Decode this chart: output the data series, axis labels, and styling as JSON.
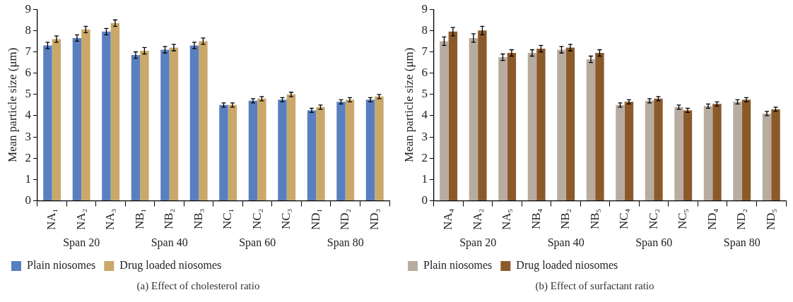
{
  "chart_data": [
    {
      "type": "bar",
      "title": "(a)  Effect of cholesterol ratio",
      "ylabel": "Mean particle size (μm)",
      "categories": [
        "NA₁",
        "NA₂",
        "NA₃",
        "NB₁",
        "NB₂",
        "NB₃",
        "NC₁",
        "NC₂",
        "NC₃",
        "ND₁",
        "ND₂",
        "ND₃"
      ],
      "series": [
        {
          "name": "Plain niosomes",
          "color": "#5a7fc0",
          "values": [
            7.3,
            7.65,
            7.95,
            6.85,
            7.1,
            7.3,
            4.5,
            4.7,
            4.75,
            4.25,
            4.65,
            4.75
          ],
          "errors": [
            0.15,
            0.15,
            0.15,
            0.15,
            0.15,
            0.15,
            0.1,
            0.1,
            0.1,
            0.1,
            0.1,
            0.1
          ]
        },
        {
          "name": "Drug loaded niosomes",
          "color": "#c9a86a",
          "values": [
            7.6,
            8.05,
            8.35,
            7.05,
            7.2,
            7.5,
            4.5,
            4.8,
            5.0,
            4.4,
            4.75,
            4.9
          ],
          "errors": [
            0.15,
            0.15,
            0.15,
            0.15,
            0.15,
            0.15,
            0.1,
            0.1,
            0.1,
            0.1,
            0.1,
            0.1
          ]
        }
      ],
      "ylim": [
        0,
        9
      ],
      "yticks": [
        0,
        1,
        2,
        3,
        4,
        5,
        6,
        7,
        8,
        9
      ],
      "grid": false,
      "legend": "bottom left",
      "annotations": [
        "Span 20",
        "Span 40",
        "Span 60",
        "Span 80"
      ]
    },
    {
      "type": "bar",
      "title": "(b)  Effect of surfactant ratio",
      "ylabel": "Mean particle size (μm)",
      "categories": [
        "NA₄",
        "NA₂",
        "NA₅",
        "NB₄",
        "NB₂",
        "NB₅",
        "NC₄",
        "NC₂",
        "NC₅",
        "ND₄",
        "ND₂",
        "ND₅"
      ],
      "series": [
        {
          "name": "Plain niosomes",
          "color": "#b8aba0",
          "values": [
            7.5,
            7.65,
            6.75,
            6.95,
            7.1,
            6.65,
            4.5,
            4.7,
            4.4,
            4.45,
            4.65,
            4.1
          ],
          "errors": [
            0.2,
            0.2,
            0.15,
            0.15,
            0.15,
            0.15,
            0.1,
            0.1,
            0.1,
            0.1,
            0.1,
            0.1
          ]
        },
        {
          "name": "Drug loaded niosomes",
          "color": "#8b5a2b",
          "values": [
            7.95,
            8.0,
            6.95,
            7.15,
            7.2,
            6.95,
            4.65,
            4.8,
            4.25,
            4.55,
            4.75,
            4.3
          ],
          "errors": [
            0.2,
            0.2,
            0.15,
            0.15,
            0.15,
            0.15,
            0.1,
            0.1,
            0.1,
            0.1,
            0.1,
            0.1
          ]
        }
      ],
      "ylim": [
        0,
        9
      ],
      "yticks": [
        0,
        1,
        2,
        3,
        4,
        5,
        6,
        7,
        8,
        9
      ],
      "grid": false,
      "legend": "bottom left",
      "annotations": [
        "Span 20",
        "Span 40",
        "Span 60",
        "Span 80"
      ]
    }
  ]
}
